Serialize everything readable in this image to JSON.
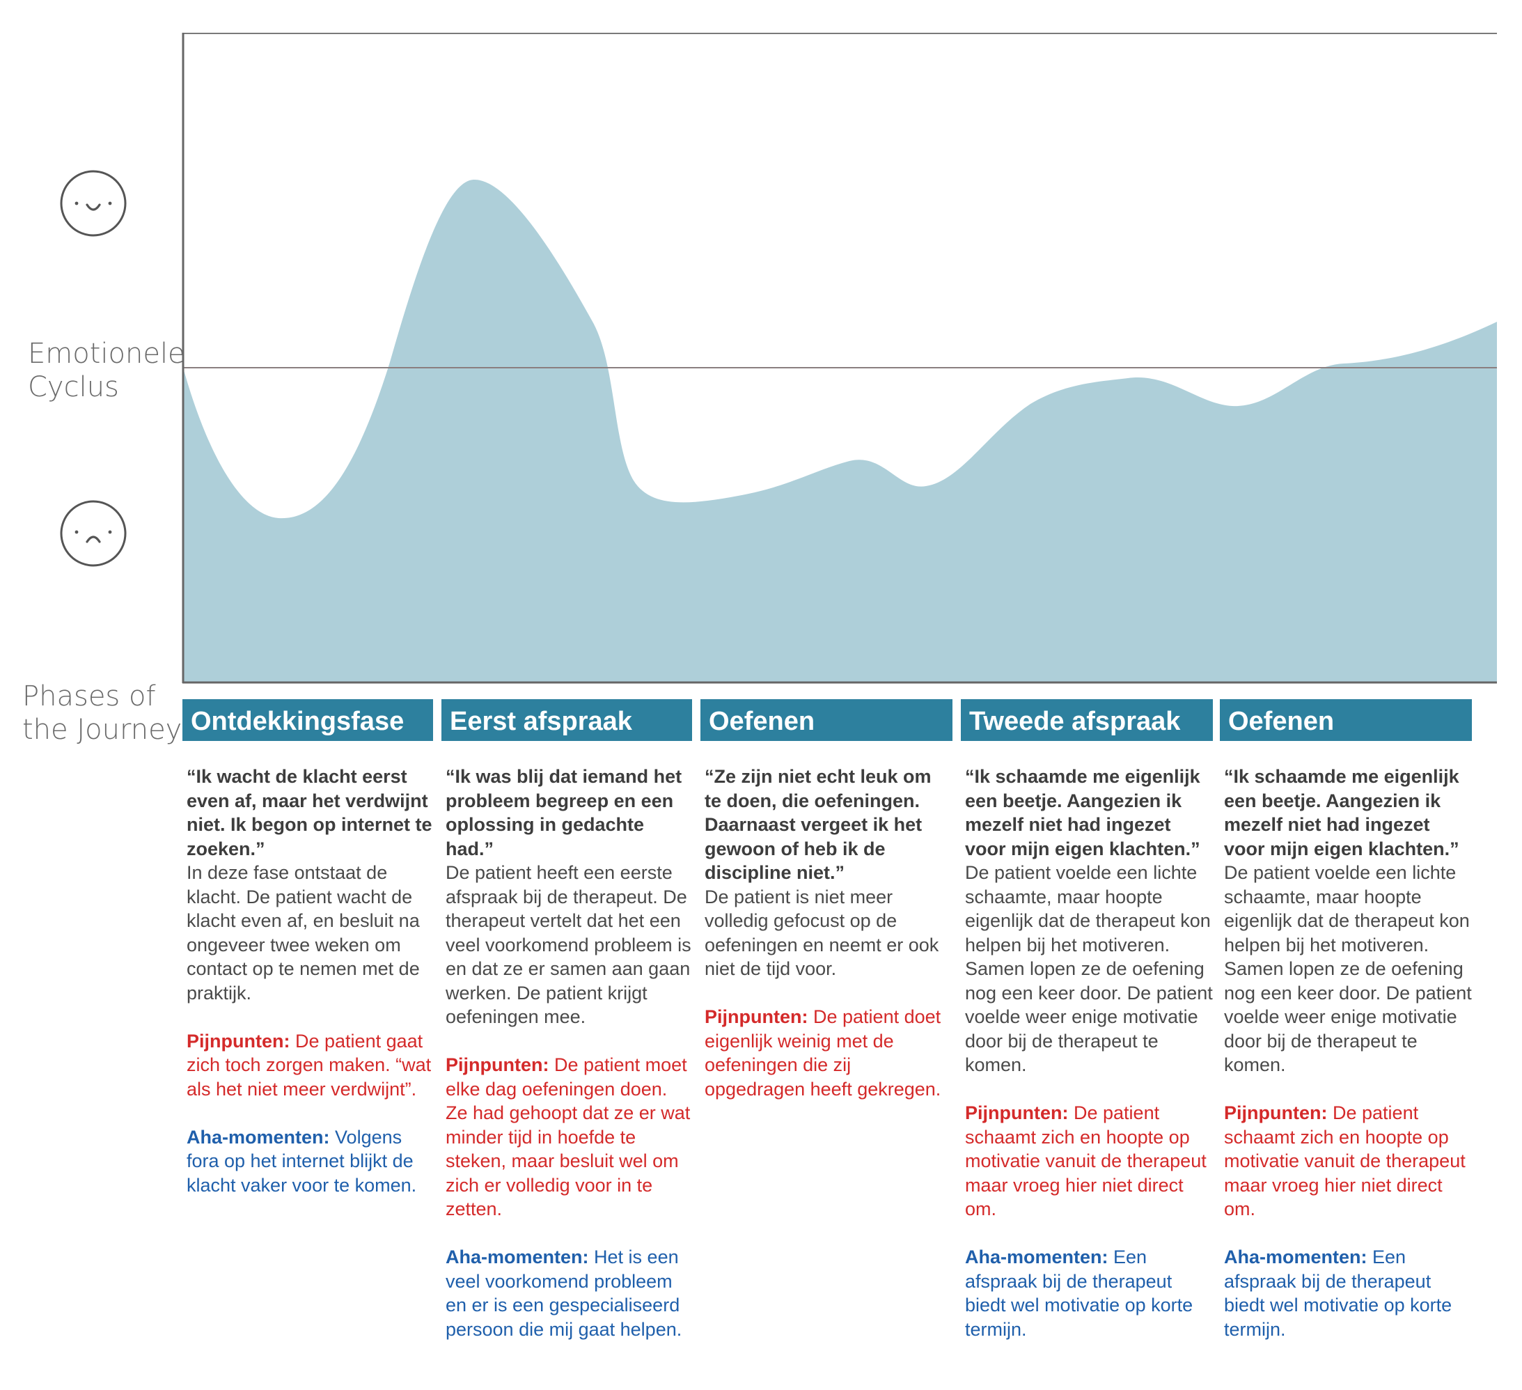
{
  "labels": {
    "emotional_cycle": "Emotionele Cyclus",
    "phases": "Phases of the Journey"
  },
  "icons": {
    "happy": "smiley-face-icon",
    "sad": "sad-face-icon"
  },
  "colors": {
    "curve_fill": "#aecfd9",
    "header_bg": "#2d809e",
    "pain": "#d42a2a",
    "aha": "#1f5fab",
    "axis": "#7a7a7a",
    "neutral_line": "#8a7f80"
  },
  "phases": [
    {
      "title": "Ontdekkingsfase",
      "quote": "“Ik wacht de klacht eerst even af, maar het verdwijnt niet. Ik begon op internet te zoeken.”",
      "description": "In deze fase ontstaat de klacht. De patient wacht de klacht even af, en besluit na ongeveer twee weken om contact op te nemen met de praktijk.",
      "pain_label": "Pijnpunten:",
      "pain_text": "De patient gaat zich toch zorgen maken. “wat als het niet meer verdwijnt”.",
      "aha_label": "Aha-momenten:",
      "aha_text": "Volgens fora op het internet blijkt de klacht vaker voor te komen."
    },
    {
      "title": "Eerst afspraak",
      "quote": "“Ik was blij dat iemand het probleem begreep en een oplossing in gedachte had.”",
      "description": "De patient heeft een eerste afspraak bij de therapeut. De therapeut vertelt dat het een veel voorkomend probleem is en dat ze er samen aan gaan werken. De patient krijgt oefeningen mee.",
      "pain_label": "Pijnpunten:",
      "pain_text": "De patient moet elke dag oefeningen doen. Ze had gehoopt dat ze er wat minder tijd in hoefde te steken, maar besluit wel om zich er volledig voor in te zetten.",
      "aha_label": "Aha-momenten:",
      "aha_text": "Het is een veel voorkomend probleem en er is een gespecialiseerd persoon die mij gaat helpen."
    },
    {
      "title": "Oefenen",
      "quote": "“Ze zijn niet echt leuk om te doen, die oefeningen. Daarnaast vergeet ik het gewoon of heb ik de discipline niet.”",
      "description": "De patient is niet meer volledig gefocust op de oefeningen en neemt er ook niet de tijd voor.",
      "pain_label": "Pijnpunten:",
      "pain_text": "De patient doet eigenlijk weinig met de oefeningen die zij opgedragen heeft gekregen.",
      "aha_label": "",
      "aha_text": ""
    },
    {
      "title": "Tweede afspraak",
      "quote": "“Ik schaamde me eigenlijk een beetje. Aangezien ik mezelf niet had ingezet voor mijn eigen klachten.”",
      "description": "De patient voelde een lichte schaamte, maar hoopte eigenlijk dat de therapeut kon helpen bij het motiveren. Samen lopen ze de oefening nog een keer door. De patient voelde weer enige motivatie door bij de therapeut te komen.",
      "pain_label": "Pijnpunten:",
      "pain_text": "De patient schaamt zich en hoopte op motivatie vanuit de therapeut maar vroeg hier niet direct om.",
      "aha_label": "Aha-momenten:",
      "aha_text": "Een afspraak bij de therapeut biedt wel motivatie op korte termijn."
    },
    {
      "title": "Oefenen",
      "quote": "“Ik schaamde me eigenlijk een beetje. Aangezien ik mezelf niet had ingezet voor mijn eigen klachten.”",
      "description": "De patient voelde een lichte schaamte, maar hoopte eigenlijk dat de therapeut kon helpen bij het motiveren. Samen lopen ze de oefening nog een keer door. De patient voelde weer enige motivatie door bij de therapeut te komen.",
      "pain_label": "Pijnpunten:",
      "pain_text": "De patient schaamt zich en hoopte op motivatie vanuit de therapeut maar vroeg hier niet direct om.",
      "aha_label": "Aha-momenten:",
      "aha_text": "Een afspraak bij de therapeut biedt wel motivatie op korte termijn."
    }
  ]
}
